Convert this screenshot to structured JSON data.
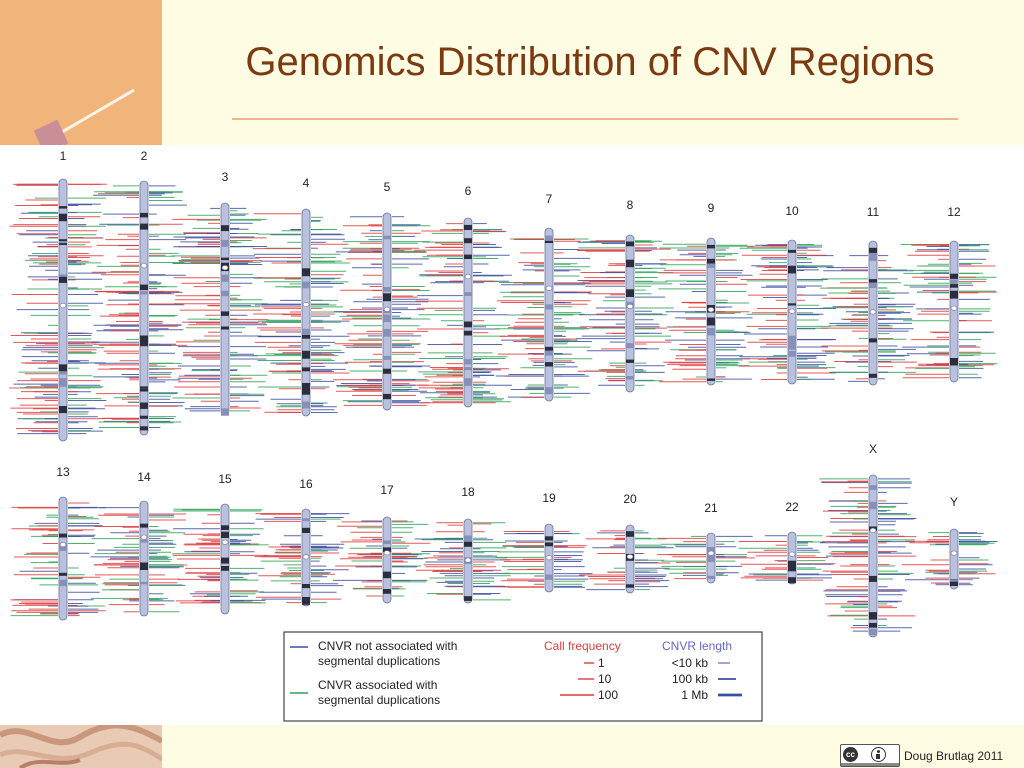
{
  "slide": {
    "title": "Genomics Distribution of CNV Regions",
    "author": "Doug Brutlag 2011"
  },
  "chromosomes": [
    {
      "label": "1",
      "length": 1.0
    },
    {
      "label": "2",
      "length": 0.97
    },
    {
      "label": "3",
      "length": 0.81
    },
    {
      "label": "4",
      "length": 0.79
    },
    {
      "label": "5",
      "length": 0.75
    },
    {
      "label": "6",
      "length": 0.72
    },
    {
      "label": "7",
      "length": 0.66
    },
    {
      "label": "8",
      "length": 0.6
    },
    {
      "label": "9",
      "length": 0.56
    },
    {
      "label": "10",
      "length": 0.55
    },
    {
      "label": "11",
      "length": 0.55
    },
    {
      "label": "12",
      "length": 0.54
    },
    {
      "label": "13",
      "length": 0.47
    },
    {
      "label": "14",
      "length": 0.44
    },
    {
      "label": "15",
      "length": 0.42
    },
    {
      "label": "16",
      "length": 0.37
    },
    {
      "label": "17",
      "length": 0.33
    },
    {
      "label": "18",
      "length": 0.32
    },
    {
      "label": "19",
      "length": 0.26
    },
    {
      "label": "20",
      "length": 0.26
    },
    {
      "label": "21",
      "length": 0.19
    },
    {
      "label": "22",
      "length": 0.2
    },
    {
      "label": "X",
      "length": 0.62
    },
    {
      "label": "Y",
      "length": 0.23
    }
  ],
  "legend": {
    "not_associated": "CNVR not associated with segmental duplications",
    "not_associated_line1": "CNVR not associated with",
    "not_associated_line2": "segmental duplications",
    "associated_line1": "CNVR associated with",
    "associated_line2": "segmental duplications",
    "call_frequency_title": "Call frequency",
    "call_frequency": [
      "1",
      "10",
      "100"
    ],
    "cnvr_length_title": "CNVR length",
    "cnvr_length": [
      "<10 kb",
      "100 kb",
      "1 Mb"
    ]
  },
  "colors": {
    "title": "#7b3a10",
    "non_segdup": "#3b4fa0",
    "segdup": "#2fa35a",
    "frequency": "#e03c3c",
    "call_frequency_title": "#e03c3c",
    "cnvr_length_title": "#6468c0",
    "chromosome_fill": "#b9c1de",
    "band_dark": "#2b2e3d"
  }
}
